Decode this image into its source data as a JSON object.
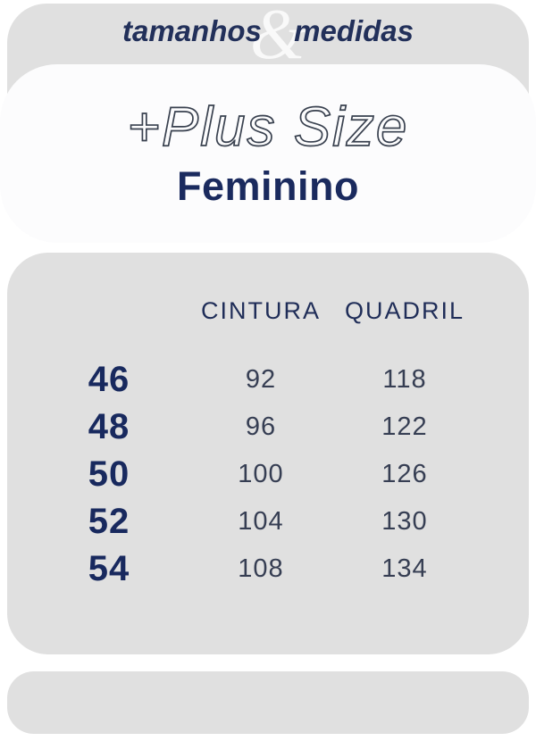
{
  "colors": {
    "band_background": "#e0e0e0",
    "card_background": "#fcfcfd",
    "navy": "#1a2a5e",
    "slate": "#39414f"
  },
  "header": {
    "word_left": "tamanhos",
    "ampersand": "&",
    "word_right": "medidas"
  },
  "hero": {
    "title": "+Plus Size",
    "subtitle": "Feminino"
  },
  "table": {
    "col_headers": [
      "CINTURA",
      "QUADRIL"
    ],
    "rows": [
      {
        "size": "46",
        "cintura": "92",
        "quadril": "118"
      },
      {
        "size": "48",
        "cintura": "96",
        "quadril": "122"
      },
      {
        "size": "50",
        "cintura": "100",
        "quadril": "126"
      },
      {
        "size": "52",
        "cintura": "104",
        "quadril": "130"
      },
      {
        "size": "54",
        "cintura": "108",
        "quadril": "134"
      }
    ]
  }
}
